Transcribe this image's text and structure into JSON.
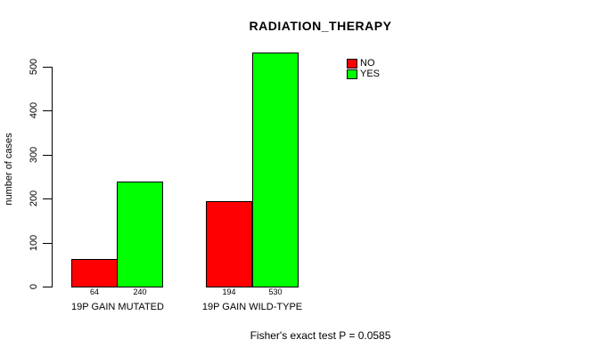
{
  "chart_data": {
    "type": "bar",
    "title": "RADIATION_THERAPY",
    "ylabel": "number of cases",
    "xlabel": "",
    "ylim": [
      0,
      500
    ],
    "yticks": [
      0,
      100,
      200,
      300,
      400,
      500
    ],
    "categories": [
      "19P GAIN MUTATED",
      "19P GAIN WILD-TYPE"
    ],
    "series": [
      {
        "name": "NO",
        "color": "#ff0000",
        "values": [
          64,
          194
        ]
      },
      {
        "name": "YES",
        "color": "#00ff00",
        "values": [
          240,
          530
        ]
      }
    ],
    "bar_value_labels": [
      [
        64,
        240
      ],
      [
        194,
        530
      ]
    ],
    "legend_position": "top-right",
    "grid": false,
    "footnote": "Fisher's exact test P = 0.0585"
  }
}
